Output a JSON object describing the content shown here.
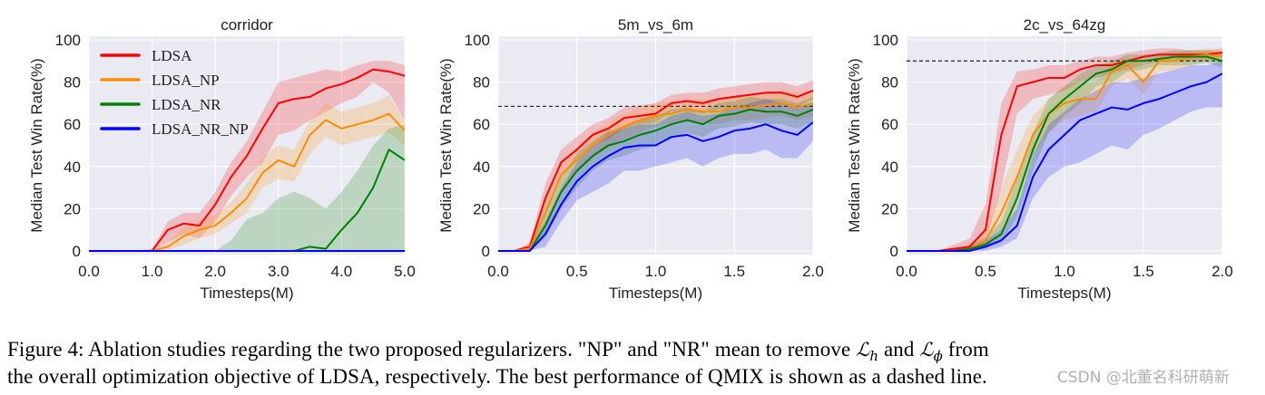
{
  "chart_data": [
    {
      "type": "line",
      "title": "corridor",
      "xlabel": "Timesteps(M)",
      "ylabel": "Median Test Win Rate(%)",
      "xlim": [
        0,
        5
      ],
      "ylim": [
        0,
        100
      ],
      "xticks": [
        "0.0",
        "1.0",
        "2.0",
        "3.0",
        "4.0",
        "5.0"
      ],
      "yticks": [
        "0",
        "20",
        "40",
        "60",
        "80",
        "100"
      ],
      "grid": true,
      "legend": "top-left",
      "baseline": null,
      "x": [
        0,
        0.25,
        0.5,
        0.75,
        1.0,
        1.25,
        1.5,
        1.75,
        2.0,
        2.25,
        2.5,
        2.75,
        3.0,
        3.25,
        3.5,
        3.75,
        4.0,
        4.25,
        4.5,
        4.75,
        5.0
      ],
      "series": [
        {
          "name": "LDSA",
          "color": "#ff0000",
          "values": [
            0,
            0,
            0,
            0,
            0,
            10,
            13,
            12,
            22,
            35,
            45,
            58,
            70,
            72,
            73,
            77,
            79,
            82,
            86,
            85,
            83
          ],
          "lower": [
            0,
            0,
            0,
            0,
            0,
            4,
            8,
            6,
            14,
            26,
            35,
            42,
            55,
            57,
            62,
            66,
            70,
            73,
            80,
            75,
            62
          ],
          "upper": [
            0,
            0,
            0,
            0,
            1,
            14,
            18,
            18,
            28,
            42,
            52,
            66,
            80,
            82,
            84,
            86,
            85,
            88,
            90,
            90,
            88
          ]
        },
        {
          "name": "LDSA_NP",
          "color": "#ff8c00",
          "values": [
            0,
            0,
            0,
            0,
            0,
            2,
            7,
            10,
            12,
            18,
            25,
            37,
            43,
            40,
            55,
            62,
            58,
            60,
            62,
            65,
            57
          ],
          "lower": [
            0,
            0,
            0,
            0,
            0,
            0,
            3,
            6,
            8,
            13,
            18,
            30,
            34,
            33,
            46,
            54,
            50,
            52,
            54,
            56,
            50
          ],
          "upper": [
            0,
            0,
            0,
            0,
            0,
            4,
            11,
            14,
            17,
            23,
            32,
            44,
            50,
            48,
            62,
            70,
            66,
            68,
            70,
            74,
            62
          ]
        },
        {
          "name": "LDSA_NR",
          "color": "#008000",
          "values": [
            0,
            0,
            0,
            0,
            0,
            0,
            0,
            0,
            0,
            0,
            0,
            0,
            0,
            0,
            2,
            1,
            10,
            18,
            30,
            48,
            43
          ],
          "lower": [
            0,
            0,
            0,
            0,
            0,
            0,
            0,
            0,
            0,
            0,
            0,
            0,
            0,
            0,
            0,
            0,
            0,
            0,
            0,
            0,
            0
          ],
          "upper": [
            0,
            0,
            0,
            0,
            0,
            0,
            0,
            0,
            0,
            5,
            15,
            18,
            25,
            28,
            25,
            20,
            28,
            38,
            50,
            58,
            60
          ]
        },
        {
          "name": "LDSA_NR_NP",
          "color": "#0000ff",
          "values": [
            0,
            0,
            0,
            0,
            0,
            0,
            0,
            0,
            0,
            0,
            0,
            0,
            0,
            0,
            0,
            0,
            0,
            0,
            0,
            0,
            0
          ],
          "lower": [
            0,
            0,
            0,
            0,
            0,
            0,
            0,
            0,
            0,
            0,
            0,
            0,
            0,
            0,
            0,
            0,
            0,
            0,
            0,
            0,
            0
          ],
          "upper": [
            0,
            0,
            0,
            0,
            0,
            0,
            0,
            0,
            0,
            0,
            0,
            0,
            0,
            0,
            0,
            0,
            0,
            0,
            0,
            0,
            0
          ]
        }
      ]
    },
    {
      "type": "line",
      "title": "5m_vs_6m",
      "xlabel": "Timesteps(M)",
      "ylabel": "Median Test Win Rate(%)",
      "xlim": [
        0,
        2
      ],
      "ylim": [
        0,
        100
      ],
      "xticks": [
        "0.0",
        "0.5",
        "1.0",
        "1.5",
        "2.0"
      ],
      "yticks": [
        "0",
        "20",
        "40",
        "60",
        "80",
        "100"
      ],
      "grid": true,
      "legend": null,
      "baseline": 68.5,
      "x": [
        0,
        0.1,
        0.2,
        0.3,
        0.4,
        0.5,
        0.6,
        0.7,
        0.8,
        0.9,
        1.0,
        1.1,
        1.2,
        1.3,
        1.4,
        1.5,
        1.6,
        1.7,
        1.8,
        1.9,
        2.0
      ],
      "series": [
        {
          "name": "LDSA",
          "color": "#ff0000",
          "values": [
            0,
            0,
            2,
            25,
            42,
            48,
            55,
            58,
            63,
            64,
            65,
            70,
            71,
            70,
            72,
            73,
            74,
            75,
            75,
            73,
            76
          ],
          "lower": [
            0,
            0,
            0,
            18,
            36,
            43,
            50,
            53,
            58,
            60,
            61,
            66,
            66,
            65,
            67,
            68,
            68,
            70,
            70,
            68,
            72
          ],
          "upper": [
            0,
            0,
            4,
            32,
            48,
            54,
            60,
            63,
            68,
            69,
            70,
            74,
            75,
            75,
            77,
            78,
            79,
            80,
            80,
            78,
            81
          ]
        },
        {
          "name": "LDSA_NP",
          "color": "#ff8c00",
          "values": [
            0,
            0,
            1,
            18,
            36,
            43,
            50,
            55,
            59,
            62,
            64,
            65,
            67,
            66,
            66,
            68,
            68,
            69,
            70,
            68,
            70
          ],
          "lower": [
            0,
            0,
            0,
            12,
            30,
            37,
            44,
            49,
            53,
            56,
            59,
            60,
            62,
            60,
            60,
            62,
            62,
            63,
            64,
            62,
            64
          ],
          "upper": [
            0,
            0,
            3,
            24,
            42,
            49,
            56,
            61,
            65,
            68,
            70,
            71,
            72,
            72,
            72,
            74,
            74,
            75,
            76,
            75,
            76
          ]
        },
        {
          "name": "LDSA_NR",
          "color": "#008000",
          "values": [
            0,
            0,
            0,
            12,
            28,
            38,
            45,
            50,
            52,
            55,
            57,
            60,
            62,
            60,
            64,
            65,
            67,
            66,
            66,
            64,
            67
          ],
          "lower": [
            0,
            0,
            0,
            6,
            20,
            30,
            38,
            43,
            45,
            48,
            50,
            53,
            56,
            54,
            58,
            59,
            61,
            60,
            60,
            58,
            61
          ],
          "upper": [
            0,
            0,
            2,
            18,
            35,
            46,
            52,
            57,
            59,
            62,
            64,
            67,
            68,
            66,
            70,
            71,
            73,
            72,
            72,
            70,
            73
          ]
        },
        {
          "name": "LDSA_NR_NP",
          "color": "#0000ff",
          "values": [
            0,
            0,
            0,
            8,
            22,
            33,
            40,
            45,
            49,
            50,
            50,
            54,
            55,
            52,
            54,
            57,
            58,
            60,
            57,
            55,
            61
          ],
          "lower": [
            0,
            0,
            0,
            2,
            14,
            24,
            28,
            32,
            38,
            38,
            40,
            42,
            44,
            40,
            44,
            46,
            46,
            48,
            44,
            44,
            52
          ],
          "upper": [
            0,
            0,
            2,
            14,
            30,
            42,
            50,
            56,
            58,
            60,
            60,
            64,
            66,
            64,
            65,
            68,
            70,
            72,
            70,
            68,
            70
          ]
        }
      ]
    },
    {
      "type": "line",
      "title": "2c_vs_64zg",
      "xlabel": "Timesteps(M)",
      "ylabel": "Median Test Win Rate(%)",
      "xlim": [
        0,
        2
      ],
      "ylim": [
        0,
        100
      ],
      "xticks": [
        "0.0",
        "0.5",
        "1.0",
        "1.5",
        "2.0"
      ],
      "yticks": [
        "0",
        "20",
        "40",
        "60",
        "80",
        "100"
      ],
      "grid": true,
      "legend": null,
      "baseline": 90,
      "x": [
        0,
        0.1,
        0.2,
        0.3,
        0.4,
        0.5,
        0.6,
        0.7,
        0.8,
        0.9,
        1.0,
        1.1,
        1.2,
        1.3,
        1.4,
        1.5,
        1.6,
        1.7,
        1.8,
        1.9,
        2.0
      ],
      "series": [
        {
          "name": "LDSA",
          "color": "#ff0000",
          "values": [
            0,
            0,
            0,
            1,
            2,
            10,
            55,
            78,
            80,
            82,
            82,
            86,
            88,
            88,
            90,
            92,
            93,
            93,
            93,
            93,
            94
          ],
          "lower": [
            0,
            0,
            0,
            0,
            0,
            4,
            30,
            65,
            72,
            74,
            76,
            80,
            82,
            84,
            86,
            88,
            90,
            90,
            90,
            90,
            92
          ],
          "upper": [
            0,
            0,
            0,
            3,
            6,
            22,
            70,
            85,
            86,
            88,
            88,
            90,
            92,
            92,
            94,
            95,
            96,
            96,
            95,
            95,
            96
          ]
        },
        {
          "name": "LDSA_NP",
          "color": "#ff8c00",
          "values": [
            0,
            0,
            0,
            0,
            1,
            5,
            18,
            35,
            55,
            65,
            70,
            72,
            72,
            85,
            88,
            80,
            90,
            90,
            92,
            93,
            92
          ],
          "lower": [
            0,
            0,
            0,
            0,
            0,
            2,
            10,
            25,
            45,
            56,
            62,
            64,
            66,
            78,
            82,
            74,
            85,
            86,
            88,
            90,
            89
          ],
          "upper": [
            0,
            0,
            0,
            1,
            3,
            10,
            30,
            48,
            64,
            72,
            78,
            80,
            80,
            90,
            92,
            88,
            93,
            94,
            95,
            96,
            95
          ]
        },
        {
          "name": "LDSA_NR",
          "color": "#008000",
          "values": [
            0,
            0,
            0,
            0,
            1,
            3,
            8,
            25,
            48,
            65,
            72,
            78,
            84,
            86,
            90,
            90,
            91,
            92,
            92,
            92,
            90
          ],
          "lower": [
            0,
            0,
            0,
            0,
            0,
            1,
            4,
            16,
            38,
            56,
            64,
            70,
            78,
            80,
            85,
            86,
            88,
            88,
            88,
            89,
            87
          ],
          "upper": [
            0,
            0,
            0,
            1,
            3,
            6,
            14,
            34,
            56,
            72,
            78,
            84,
            88,
            90,
            93,
            93,
            94,
            95,
            95,
            95,
            94
          ]
        },
        {
          "name": "LDSA_NR_NP",
          "color": "#0000ff",
          "values": [
            0,
            0,
            0,
            0,
            0,
            2,
            5,
            12,
            35,
            48,
            55,
            62,
            65,
            68,
            67,
            70,
            72,
            75,
            78,
            80,
            84
          ],
          "lower": [
            0,
            0,
            0,
            0,
            0,
            0,
            2,
            6,
            25,
            35,
            40,
            42,
            46,
            50,
            48,
            55,
            58,
            62,
            66,
            68,
            68
          ],
          "upper": [
            0,
            0,
            0,
            1,
            2,
            5,
            10,
            20,
            45,
            60,
            66,
            72,
            76,
            80,
            80,
            82,
            84,
            86,
            88,
            88,
            90
          ]
        }
      ]
    }
  ],
  "caption": {
    "line1_a": "Figure 4: Ablation studies regarding the two proposed regularizers. \"NP\" and \"NR\" mean to remove ",
    "math1": "ℒ",
    "math1_sub": "h",
    "line1_b": " and ",
    "math2": "ℒ",
    "math2_sub": "ϕ",
    "line1_c": " from",
    "line2": "the overall optimization objective of LDSA, respectively. The best performance of QMIX is shown as a dashed line."
  },
  "watermark": "CSDN @北董名科研萌新",
  "colors": {
    "axes_bg": "#eaeaf2",
    "grid": "#ffffff",
    "baseline": "#333333"
  }
}
